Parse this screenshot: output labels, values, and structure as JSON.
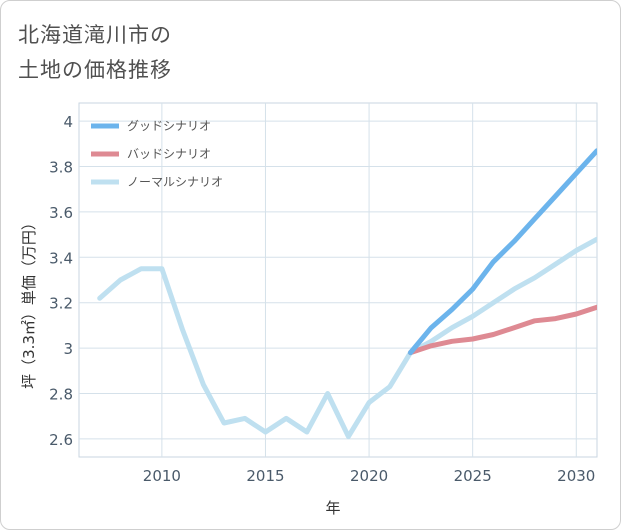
{
  "title_lines": [
    "北海道滝川市の",
    "土地の価格推移"
  ],
  "chart_data": {
    "type": "line",
    "title": "北海道滝川市の土地の価格推移",
    "xlabel": "年",
    "ylabel": "坪（3.3㎡）単価（万円）",
    "xlim": [
      2006,
      2031
    ],
    "ylim": [
      2.52,
      4.08
    ],
    "xticks": [
      2010,
      2015,
      2020,
      2025,
      2030
    ],
    "yticks": [
      2.6,
      2.8,
      3,
      3.2,
      3.4,
      3.6,
      3.8,
      4
    ],
    "ytick_labels": [
      "2.6",
      "2.8",
      "3",
      "3.2",
      "3.4",
      "3.6",
      "3.8",
      "4"
    ],
    "grid": true,
    "legend_position": "top-left",
    "series": [
      {
        "name": "グッドシナリオ",
        "color": "#6cb4ec",
        "x": [
          2022,
          2023,
          2024,
          2025,
          2026,
          2027,
          2028,
          2029,
          2030,
          2031
        ],
        "values": [
          2.98,
          3.09,
          3.17,
          3.26,
          3.38,
          3.47,
          3.57,
          3.67,
          3.77,
          3.87
        ]
      },
      {
        "name": "バッドシナリオ",
        "color": "#de8a93",
        "x": [
          2022,
          2023,
          2024,
          2025,
          2026,
          2027,
          2028,
          2029,
          2030,
          2031
        ],
        "values": [
          2.98,
          3.01,
          3.03,
          3.04,
          3.06,
          3.09,
          3.12,
          3.13,
          3.15,
          3.18
        ]
      },
      {
        "name": "ノーマルシナリオ",
        "color": "#bfe0f0",
        "x": [
          2007,
          2008,
          2009,
          2010,
          2011,
          2012,
          2013,
          2014,
          2015,
          2016,
          2017,
          2018,
          2019,
          2020,
          2021,
          2022,
          2023,
          2024,
          2025,
          2026,
          2027,
          2028,
          2029,
          2030,
          2031
        ],
        "values": [
          3.22,
          3.3,
          3.35,
          3.35,
          3.08,
          2.84,
          2.67,
          2.69,
          2.63,
          2.69,
          2.63,
          2.8,
          2.61,
          2.76,
          2.83,
          2.98,
          3.03,
          3.09,
          3.14,
          3.2,
          3.26,
          3.31,
          3.37,
          3.43,
          3.48
        ]
      }
    ]
  }
}
